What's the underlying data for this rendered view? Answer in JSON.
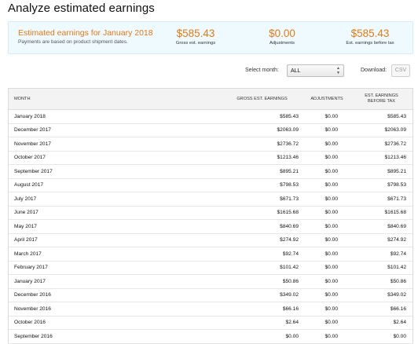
{
  "page": {
    "title": "Analyze estimated earnings"
  },
  "summary": {
    "title": "Estimated earnings for January 2018",
    "subtitle": "Payments are based on product shipment dates.",
    "gross": {
      "value": "$585.43",
      "label": "Gross est. earnings"
    },
    "adjustments": {
      "value": "$0.00",
      "label": "Adjustments"
    },
    "net": {
      "value": "$585.43",
      "label": "Est. earnings before tax"
    }
  },
  "controls": {
    "select_label": "Select month:",
    "select_value": "ALL",
    "download_label": "Download:",
    "csv_label": "CSV"
  },
  "table": {
    "headers": {
      "month": "MONTH",
      "gross": "GROSS EST. EARNINGS",
      "adjustments": "ADJUSTMENTS",
      "net_line1": "EST. EARNINGS",
      "net_line2": "BEFORE TAX"
    },
    "rows": [
      {
        "month": "January 2018",
        "gross": "$585.43",
        "adjustments": "$0.00",
        "net": "$585.43"
      },
      {
        "month": "December 2017",
        "gross": "$2063.09",
        "adjustments": "$0.00",
        "net": "$2063.09"
      },
      {
        "month": "November 2017",
        "gross": "$2736.72",
        "adjustments": "$0.00",
        "net": "$2736.72"
      },
      {
        "month": "October 2017",
        "gross": "$1213.46",
        "adjustments": "$0.00",
        "net": "$1213.46"
      },
      {
        "month": "September 2017",
        "gross": "$895.21",
        "adjustments": "$0.00",
        "net": "$895.21"
      },
      {
        "month": "August 2017",
        "gross": "$798.53",
        "adjustments": "$0.00",
        "net": "$798.53"
      },
      {
        "month": "July 2017",
        "gross": "$671.73",
        "adjustments": "$0.00",
        "net": "$671.73"
      },
      {
        "month": "June 2017",
        "gross": "$1615.68",
        "adjustments": "$0.00",
        "net": "$1615.68"
      },
      {
        "month": "May 2017",
        "gross": "$840.69",
        "adjustments": "$0.00",
        "net": "$840.69"
      },
      {
        "month": "April 2017",
        "gross": "$274.92",
        "adjustments": "$0.00",
        "net": "$274.92"
      },
      {
        "month": "March 2017",
        "gross": "$92.74",
        "adjustments": "$0.00",
        "net": "$92.74"
      },
      {
        "month": "February 2017",
        "gross": "$101.42",
        "adjustments": "$0.00",
        "net": "$101.42"
      },
      {
        "month": "January 2017",
        "gross": "$50.86",
        "adjustments": "$0.00",
        "net": "$50.86"
      },
      {
        "month": "December 2016",
        "gross": "$349.02",
        "adjustments": "$0.00",
        "net": "$349.02"
      },
      {
        "month": "November 2016",
        "gross": "$66.16",
        "adjustments": "$0.00",
        "net": "$66.16"
      },
      {
        "month": "October 2016",
        "gross": "$2.64",
        "adjustments": "$0.00",
        "net": "$2.64"
      },
      {
        "month": "September 2016",
        "gross": "$0.00",
        "adjustments": "$0.00",
        "net": "$0.00"
      }
    ]
  }
}
